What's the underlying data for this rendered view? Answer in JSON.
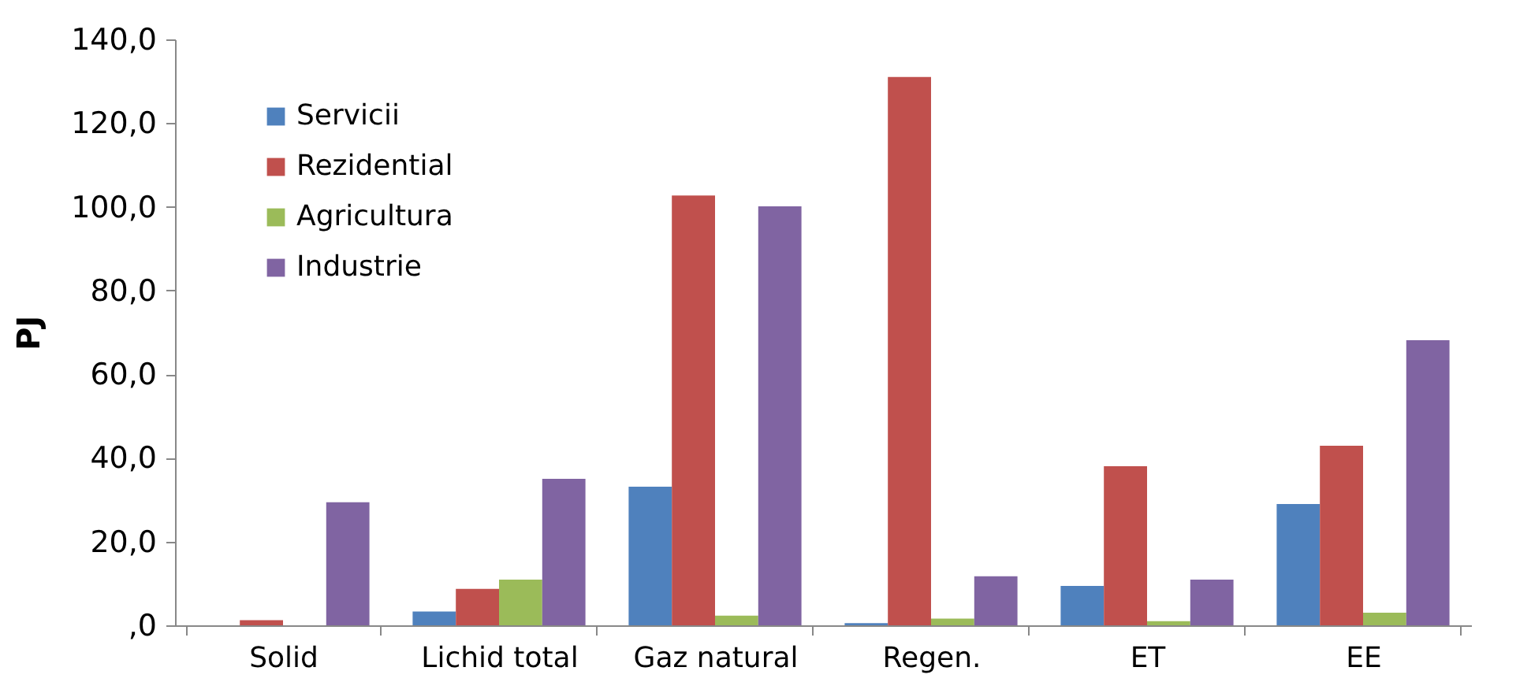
{
  "chart_data": {
    "type": "bar",
    "ylabel": "PJ",
    "categories": [
      "Solid",
      "Lichid total",
      "Gaz natural",
      "Regen.",
      "ET",
      "EE"
    ],
    "series": [
      {
        "name": "Servicii",
        "color": "#4f81bd",
        "values": [
          0,
          3.3,
          33.1,
          0.5,
          9.4,
          29
        ]
      },
      {
        "name": "Rezidential",
        "color": "#c0504d",
        "values": [
          1.2,
          8.7,
          102.7,
          131,
          38,
          42.9
        ]
      },
      {
        "name": "Agricultura",
        "color": "#9bbb59",
        "values": [
          0,
          10.9,
          2.3,
          1.6,
          1.0,
          3
        ]
      },
      {
        "name": "Industrie",
        "color": "#8064a2",
        "values": [
          29.4,
          35,
          100.1,
          11.7,
          10.9,
          68.1
        ]
      }
    ],
    "ylim": [
      0,
      140
    ],
    "yticks": [
      {
        "value": 0,
        "label": ",0"
      },
      {
        "value": 20,
        "label": "20,0"
      },
      {
        "value": 40,
        "label": "40,0"
      },
      {
        "value": 60,
        "label": "60,0"
      },
      {
        "value": 80,
        "label": "80,0"
      },
      {
        "value": 100,
        "label": "100,0"
      },
      {
        "value": 120,
        "label": "120,0"
      },
      {
        "value": 140,
        "label": "140,0"
      }
    ],
    "grid": false,
    "legend": "top left"
  }
}
